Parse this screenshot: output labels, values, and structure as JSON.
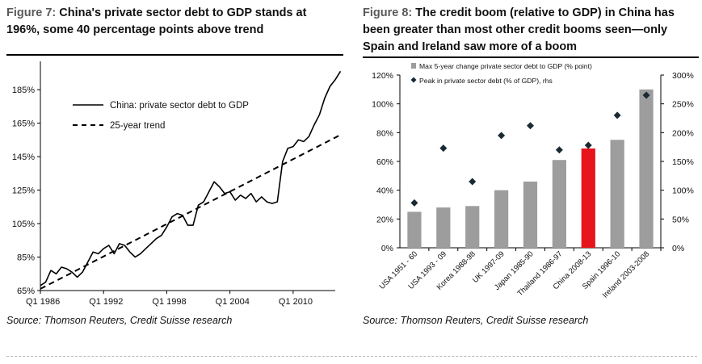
{
  "figures": {
    "left": {
      "fig_label": "Figure 7:",
      "title_line1": "China's private sector debt to GDP stands at",
      "title_line2": "196%, some 40 percentage points above trend",
      "source": "Source: Thomson Reuters, Credit Suisse research"
    },
    "right": {
      "fig_label": "Figure 8:",
      "title_line1": "The credit boom (relative to GDP) in China has",
      "title_line2": "been greater than most other credit booms seen—only",
      "title_line3": "Spain and Ireland saw more of a boom",
      "source": "Source: Thomson Reuters, Credit Suisse research"
    }
  },
  "chart_data": [
    {
      "type": "line",
      "yticks": [
        "65%",
        "85%",
        "105%",
        "125%",
        "145%",
        "165%",
        "185%"
      ],
      "ytick_values": [
        65,
        85,
        105,
        125,
        145,
        165,
        185
      ],
      "xticks": [
        "Q1 1986",
        "Q1 1992",
        "Q1 1998",
        "Q1 2004",
        "Q1 2010"
      ],
      "xtick_values": [
        1986,
        1992,
        1998,
        2004,
        2010
      ],
      "ylim": [
        65,
        200
      ],
      "xlim": [
        1986,
        2014
      ],
      "legend_position": "top-left",
      "series": [
        {
          "name": "China: private sector debt to GDP",
          "style": "solid",
          "color": "#000000",
          "x": [
            1986.0,
            1986.5,
            1987.0,
            1987.5,
            1988.0,
            1988.5,
            1989.0,
            1989.5,
            1990.0,
            1990.5,
            1991.0,
            1991.5,
            1992.0,
            1992.5,
            1993.0,
            1993.5,
            1994.0,
            1994.5,
            1995.0,
            1995.5,
            1996.0,
            1996.5,
            1997.0,
            1997.5,
            1998.0,
            1998.5,
            1999.0,
            1999.5,
            2000.0,
            2000.5,
            2001.0,
            2001.5,
            2002.0,
            2002.5,
            2003.0,
            2003.5,
            2004.0,
            2004.5,
            2005.0,
            2005.5,
            2006.0,
            2006.5,
            2007.0,
            2007.5,
            2008.0,
            2008.5,
            2009.0,
            2009.5,
            2010.0,
            2010.5,
            2011.0,
            2011.5,
            2012.0,
            2012.5,
            2013.0,
            2013.5,
            2014.0,
            2014.5
          ],
          "y": [
            68,
            70,
            77,
            75,
            79,
            78,
            76,
            73,
            76,
            82,
            88,
            87,
            90,
            92,
            87,
            93,
            92,
            88,
            85,
            87,
            90,
            93,
            96,
            98,
            103,
            109,
            111,
            110,
            104,
            104,
            116,
            118,
            124,
            130,
            127,
            123,
            124,
            119,
            122,
            120,
            123,
            118,
            121,
            118,
            117,
            118,
            142,
            150,
            151,
            155,
            154,
            157,
            164,
            170,
            180,
            187,
            191,
            196
          ]
        },
        {
          "name": "25-year trend",
          "style": "dashed",
          "color": "#000000",
          "x": [
            1986.0,
            2014.5
          ],
          "y": [
            66,
            158
          ]
        }
      ]
    },
    {
      "type": "bar",
      "categories": [
        "USA 1951 - 60",
        "USA 1993 - 09",
        "Korea 1988-98",
        "UK 1997-09",
        "Japan 1985-90",
        "Thailand 1986-97",
        "China 2008-13",
        "Spain 1996-10",
        "Ireland 2003-2008"
      ],
      "highlight_category": "China 2008-13",
      "ylim": [
        0,
        120
      ],
      "yticks": [
        "0%",
        "20%",
        "40%",
        "60%",
        "80%",
        "100%",
        "120%"
      ],
      "ytick_values": [
        0,
        20,
        40,
        60,
        80,
        100,
        120
      ],
      "y2lim": [
        0,
        300
      ],
      "y2ticks": [
        "0%",
        "50%",
        "100%",
        "150%",
        "200%",
        "250%",
        "300%"
      ],
      "y2tick_values": [
        0,
        50,
        100,
        150,
        200,
        250,
        300
      ],
      "legend_position": "top-left",
      "series": [
        {
          "name": "Max 5-year change private sector debt to GDP (% point)",
          "type": "bar",
          "axis": "left",
          "color": "#9d9d9d",
          "highlight_color": "#e8141c",
          "values": [
            25,
            28,
            29,
            40,
            46,
            61,
            69,
            75,
            110
          ]
        },
        {
          "name": "Peak in private sector debt (% of GDP), rhs",
          "type": "scatter",
          "axis": "right",
          "marker": "diamond",
          "color": "#1a2a33",
          "values": [
            78,
            173,
            115,
            195,
            212,
            170,
            178,
            230,
            265
          ]
        }
      ]
    }
  ]
}
